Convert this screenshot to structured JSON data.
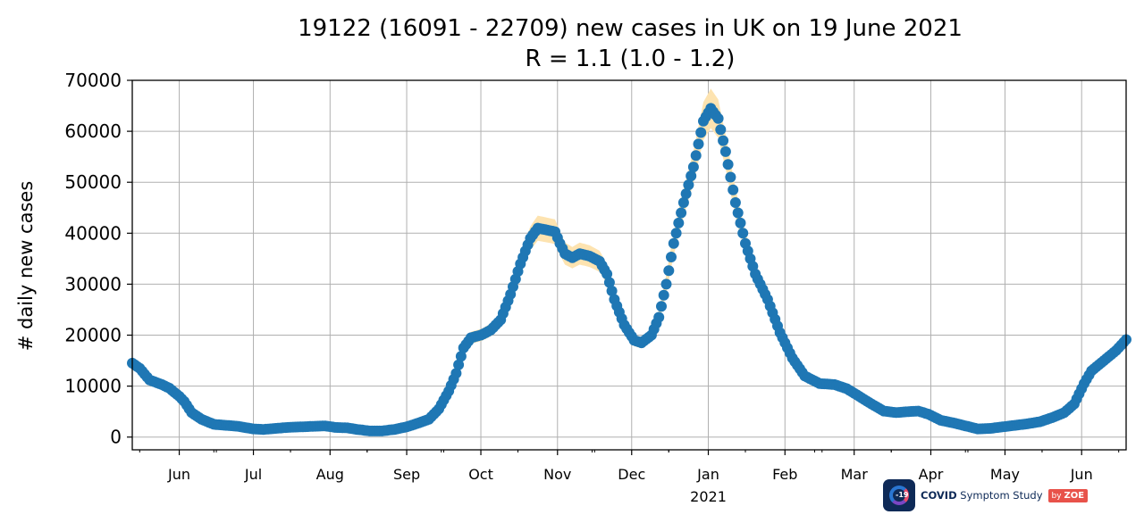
{
  "chart_data": {
    "type": "scatter",
    "title": "19122 (16091 - 22709) new cases in UK on 19 June 2021",
    "subtitle": "R = 1.1 (1.0 - 1.2)",
    "xlabel": "",
    "ylabel": "# daily new cases",
    "x_start": "2020-05-13",
    "x_end": "2021-06-19",
    "ylim": [
      -2500,
      70000
    ],
    "yticks": [
      0,
      10000,
      20000,
      30000,
      40000,
      50000,
      60000,
      70000
    ],
    "xticks": [
      {
        "date": "2020-06-01",
        "label": "Jun"
      },
      {
        "date": "2020-07-01",
        "label": "Jul"
      },
      {
        "date": "2020-08-01",
        "label": "Aug"
      },
      {
        "date": "2020-09-01",
        "label": "Sep"
      },
      {
        "date": "2020-10-01",
        "label": "Oct"
      },
      {
        "date": "2020-11-01",
        "label": "Nov"
      },
      {
        "date": "2020-12-01",
        "label": "Dec"
      },
      {
        "date": "2021-01-01",
        "label": "Jan"
      },
      {
        "date": "2021-02-01",
        "label": "Feb"
      },
      {
        "date": "2021-03-01",
        "label": "Mar"
      },
      {
        "date": "2021-04-01",
        "label": "Apr"
      },
      {
        "date": "2021-05-01",
        "label": "May"
      },
      {
        "date": "2021-06-01",
        "label": "Jun"
      }
    ],
    "year_label": {
      "date": "2021-01-01",
      "label": "2021"
    },
    "grid": true,
    "series": [
      {
        "color": "#1f77b4",
        "band_color": "#fde3b0",
        "points": [
          [
            "2020-05-13",
            14500
          ],
          [
            "2020-05-16",
            13500
          ],
          [
            "2020-05-20",
            11200
          ],
          [
            "2020-05-25",
            10300
          ],
          [
            "2020-05-28",
            9600
          ],
          [
            "2020-06-01",
            8000
          ],
          [
            "2020-06-03",
            7000
          ],
          [
            "2020-06-06",
            4800
          ],
          [
            "2020-06-10",
            3500
          ],
          [
            "2020-06-15",
            2500
          ],
          [
            "2020-06-20",
            2300
          ],
          [
            "2020-06-25",
            2100
          ],
          [
            "2020-07-01",
            1600
          ],
          [
            "2020-07-05",
            1500
          ],
          [
            "2020-07-10",
            1700
          ],
          [
            "2020-07-15",
            1900
          ],
          [
            "2020-07-20",
            2000
          ],
          [
            "2020-07-25",
            2100
          ],
          [
            "2020-07-30",
            2200
          ],
          [
            "2020-08-03",
            1900
          ],
          [
            "2020-08-08",
            1800
          ],
          [
            "2020-08-12",
            1500
          ],
          [
            "2020-08-17",
            1200
          ],
          [
            "2020-08-22",
            1200
          ],
          [
            "2020-08-27",
            1500
          ],
          [
            "2020-09-01",
            2000
          ],
          [
            "2020-09-06",
            2800
          ],
          [
            "2020-09-10",
            3500
          ],
          [
            "2020-09-14",
            5500
          ],
          [
            "2020-09-18",
            9000
          ],
          [
            "2020-09-21",
            12500
          ],
          [
            "2020-09-24",
            17500
          ],
          [
            "2020-09-27",
            19500
          ],
          [
            "2020-10-01",
            20000
          ],
          [
            "2020-10-05",
            21000
          ],
          [
            "2020-10-09",
            23000
          ],
          [
            "2020-10-13",
            28000
          ],
          [
            "2020-10-17",
            34000
          ],
          [
            "2020-10-21",
            39000
          ],
          [
            "2020-10-24",
            41000
          ],
          [
            "2020-10-27",
            40700
          ],
          [
            "2020-10-31",
            40300
          ],
          [
            "2020-11-02",
            38000
          ],
          [
            "2020-11-04",
            36000
          ],
          [
            "2020-11-07",
            35200
          ],
          [
            "2020-11-10",
            36000
          ],
          [
            "2020-11-14",
            35500
          ],
          [
            "2020-11-18",
            34500
          ],
          [
            "2020-11-21",
            32000
          ],
          [
            "2020-11-24",
            27000
          ],
          [
            "2020-11-28",
            22000
          ],
          [
            "2020-12-02",
            19000
          ],
          [
            "2020-12-05",
            18500
          ],
          [
            "2020-12-09",
            20000
          ],
          [
            "2020-12-12",
            23500
          ],
          [
            "2020-12-15",
            30000
          ],
          [
            "2020-12-18",
            38000
          ],
          [
            "2020-12-22",
            46000
          ],
          [
            "2020-12-26",
            53000
          ],
          [
            "2020-12-30",
            62000
          ],
          [
            "2021-01-02",
            64500
          ],
          [
            "2021-01-05",
            62500
          ],
          [
            "2021-01-08",
            56000
          ],
          [
            "2021-01-12",
            46000
          ],
          [
            "2021-01-16",
            38000
          ],
          [
            "2021-01-20",
            32000
          ],
          [
            "2021-01-25",
            27000
          ],
          [
            "2021-01-30",
            20500
          ],
          [
            "2021-02-04",
            15500
          ],
          [
            "2021-02-09",
            12000
          ],
          [
            "2021-02-15",
            10500
          ],
          [
            "2021-02-21",
            10300
          ],
          [
            "2021-02-26",
            9500
          ],
          [
            "2021-03-03",
            8000
          ],
          [
            "2021-03-08",
            6500
          ],
          [
            "2021-03-13",
            5100
          ],
          [
            "2021-03-18",
            4800
          ],
          [
            "2021-03-23",
            5000
          ],
          [
            "2021-03-27",
            5100
          ],
          [
            "2021-03-31",
            4500
          ],
          [
            "2021-04-05",
            3300
          ],
          [
            "2021-04-10",
            2800
          ],
          [
            "2021-04-15",
            2200
          ],
          [
            "2021-04-20",
            1600
          ],
          [
            "2021-04-25",
            1700
          ],
          [
            "2021-04-30",
            2000
          ],
          [
            "2021-05-05",
            2300
          ],
          [
            "2021-05-10",
            2600
          ],
          [
            "2021-05-15",
            3000
          ],
          [
            "2021-05-20",
            3800
          ],
          [
            "2021-05-25",
            4800
          ],
          [
            "2021-05-29",
            6500
          ],
          [
            "2021-06-02",
            10500
          ],
          [
            "2021-06-05",
            13000
          ],
          [
            "2021-06-10",
            15000
          ],
          [
            "2021-06-15",
            17000
          ],
          [
            "2021-06-19",
            19122
          ]
        ]
      }
    ]
  },
  "logo": {
    "icon_text": "-19",
    "brand_bold": "COVID",
    "brand_rest": "Symptom Study",
    "by": "by",
    "by_brand": "ZOE"
  }
}
